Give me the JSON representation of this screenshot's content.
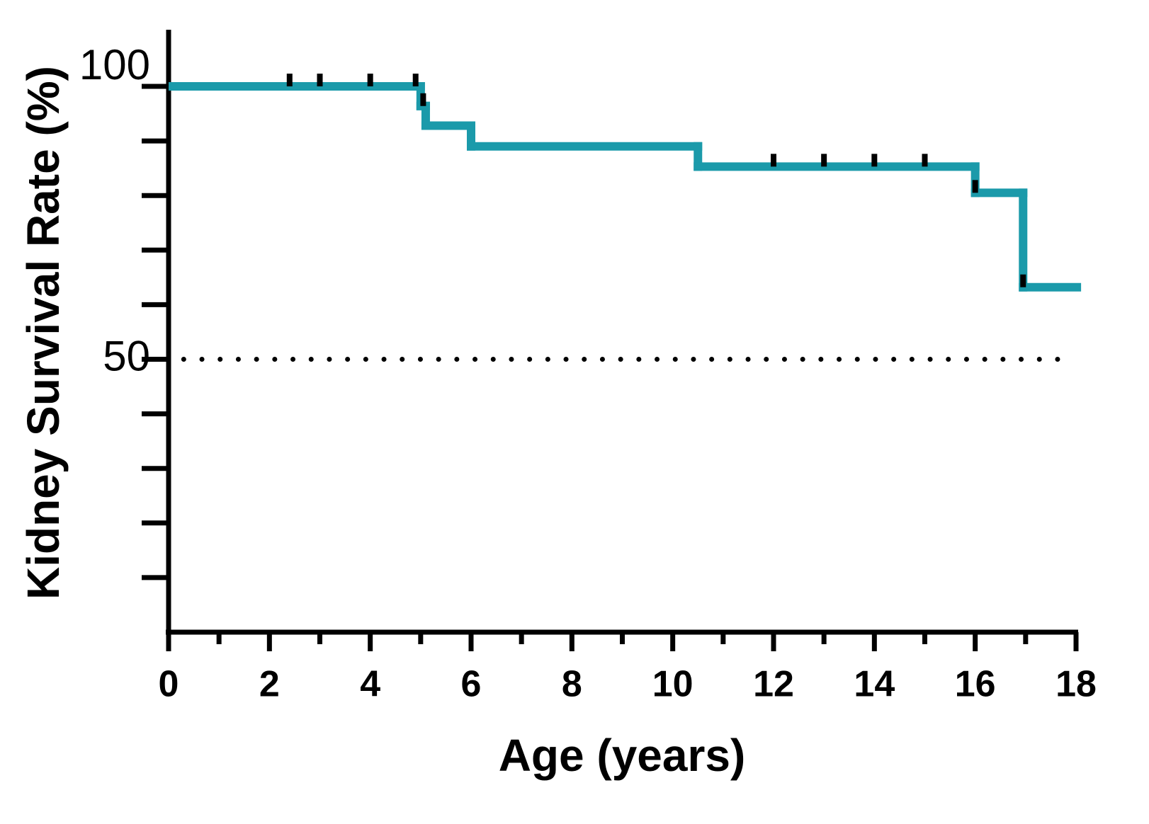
{
  "chart_data": {
    "type": "step",
    "x_label": "Age (years)",
    "y_label": "Kidney Survival Rate (%)",
    "xlim": [
      0,
      18
    ],
    "xticks": [
      0,
      2,
      4,
      6,
      8,
      10,
      12,
      14,
      16,
      18
    ],
    "xminorticks": [
      1,
      3,
      5,
      7,
      9,
      11,
      13,
      15,
      17
    ],
    "ylim": [
      0,
      110
    ],
    "yticks": [
      50,
      100
    ],
    "yminorticks": [
      10,
      20,
      30,
      40,
      60,
      70,
      80,
      90
    ],
    "reference_line": {
      "y": 50,
      "x": [
        0.3,
        17.7
      ]
    },
    "series": [
      {
        "color": "#1b9aaa",
        "x": [
          0,
          5,
          5.1,
          6,
          10.5,
          16,
          16.95,
          18.1
        ],
        "values": [
          100,
          96.4,
          92.8,
          89,
          85.3,
          80.5,
          63.2,
          63.2
        ],
        "censored": {
          "x": [
            2.4,
            3,
            4,
            4.9,
            5.05,
            12,
            13,
            14,
            15,
            16,
            16.95
          ],
          "values": [
            100,
            100,
            100,
            100,
            96.4,
            85.3,
            85.3,
            85.3,
            85.3,
            80.5,
            63.2
          ]
        }
      }
    ]
  }
}
